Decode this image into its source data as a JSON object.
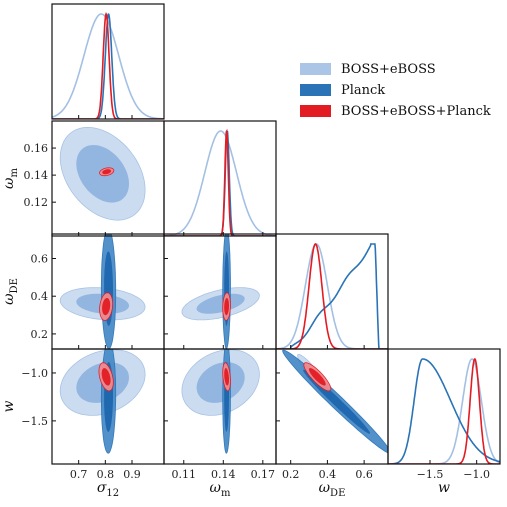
{
  "chart_data": {
    "type": "triangle-corner-plot",
    "legend": {
      "placement": "top-right",
      "entries": [
        {
          "label": "BOSS+eBOSS",
          "color": "#aac5e6"
        },
        {
          "label": "Planck",
          "color": "#2a73b6"
        },
        {
          "label": "BOSS+eBOSS+Planck",
          "color": "#e31b23"
        }
      ]
    },
    "parameters": [
      {
        "label": "σ",
        "sub": "12",
        "range": [
          0.6,
          1.02
        ],
        "ticks": [
          0.7,
          0.8,
          0.9
        ],
        "tick_labels": [
          "0.7",
          "0.8",
          "0.9"
        ]
      },
      {
        "label": "ω",
        "sub": "m",
        "range": [
          0.095,
          0.18
        ],
        "ticks": [
          0.11,
          0.14,
          0.17
        ],
        "tick_labels": [
          "0.11",
          "0.14",
          "0.17"
        ]
      },
      {
        "label": "ω",
        "sub": "DE",
        "range": [
          0.12,
          0.73
        ],
        "ticks": [
          0.2,
          0.4,
          0.6
        ],
        "tick_labels": [
          "0.2",
          "0.4",
          "0.6"
        ]
      },
      {
        "label": "w",
        "sub": "",
        "range": [
          -1.95,
          -0.75
        ],
        "ticks": [
          -1.5,
          -1.0
        ],
        "tick_labels": [
          "−1.5",
          "−1.0"
        ]
      }
    ],
    "y_tick_labels": {
      "1": {
        "ticks": [
          0.12,
          0.14,
          0.16
        ],
        "labels": [
          "0.12",
          "0.14",
          "0.16"
        ]
      },
      "2": {
        "ticks": [
          0.2,
          0.4,
          0.6
        ],
        "labels": [
          "0.2",
          "0.4",
          "0.6"
        ]
      },
      "3": {
        "ticks": [
          -1.5,
          -1.0
        ],
        "labels": [
          "−1.5",
          "−1.0"
        ]
      }
    },
    "marginals": [
      {
        "param": 0,
        "series": [
          {
            "name": "BOSS+eBOSS",
            "mean": 0.785,
            "sd": 0.065
          },
          {
            "name": "Planck",
            "mean": 0.812,
            "sd": 0.012
          },
          {
            "name": "BOSS+eBOSS+Planck",
            "mean": 0.803,
            "sd": 0.011
          }
        ]
      },
      {
        "param": 1,
        "series": [
          {
            "name": "BOSS+eBOSS",
            "mean": 0.138,
            "sd": 0.012
          },
          {
            "name": "Planck",
            "mean": 0.143,
            "sd": 0.0015
          },
          {
            "name": "BOSS+eBOSS+Planck",
            "mean": 0.1425,
            "sd": 0.0013
          }
        ]
      },
      {
        "param": 2,
        "series": [
          {
            "name": "BOSS+eBOSS",
            "mean": 0.34,
            "sd": 0.06
          },
          {
            "name": "Planck",
            "shape": "rising",
            "from": 0.2,
            "to": 0.66,
            "plateau": 0.635
          },
          {
            "name": "BOSS+eBOSS+Planck",
            "mean": 0.335,
            "sd": 0.035
          }
        ]
      },
      {
        "param": 3,
        "series": [
          {
            "name": "BOSS+eBOSS",
            "mean": -1.05,
            "sd": 0.1
          },
          {
            "name": "Planck",
            "shape": "skewed",
            "peak": -1.58,
            "left_sd": 0.09,
            "right_sd": 0.3
          },
          {
            "name": "BOSS+eBOSS+Planck",
            "mean": -1.02,
            "sd": 0.05
          }
        ]
      }
    ],
    "contours": [
      {
        "px": 0,
        "py": 1,
        "ellipses": [
          {
            "series": "BOSS+eBOSS",
            "cx": 0.79,
            "cy": 0.141,
            "sx": 0.065,
            "sy": 0.014,
            "rho": -0.35
          },
          {
            "series": "BOSS+eBOSS+Planck",
            "cx": 0.805,
            "cy": 0.1425,
            "sx": 0.011,
            "sy": 0.0012,
            "rho": 0.3
          }
        ]
      },
      {
        "px": 0,
        "py": 2,
        "ellipses": [
          {
            "series": "BOSS+eBOSS",
            "cx": 0.79,
            "cy": 0.36,
            "sx": 0.065,
            "sy": 0.035,
            "rho": -0.2
          },
          {
            "series": "Planck",
            "cx": 0.812,
            "cy": 0.44,
            "sx": 0.011,
            "sy": 0.13,
            "rho": -0.05
          },
          {
            "series": "BOSS+eBOSS+Planck",
            "cx": 0.803,
            "cy": 0.345,
            "sx": 0.01,
            "sy": 0.03,
            "rho": 0.2
          }
        ]
      },
      {
        "px": 1,
        "py": 2,
        "ellipses": [
          {
            "series": "BOSS+eBOSS",
            "cx": 0.138,
            "cy": 0.36,
            "sx": 0.012,
            "sy": 0.035,
            "rho": 0.5
          },
          {
            "series": "Planck",
            "cx": 0.1425,
            "cy": 0.44,
            "sx": 0.0012,
            "sy": 0.13,
            "rho": 0.05
          },
          {
            "series": "BOSS+eBOSS+Planck",
            "cx": 0.1425,
            "cy": 0.345,
            "sx": 0.0012,
            "sy": 0.03,
            "rho": 0.1
          }
        ]
      },
      {
        "px": 0,
        "py": 3,
        "ellipses": [
          {
            "series": "BOSS+eBOSS",
            "cx": 0.79,
            "cy": -1.1,
            "sx": 0.065,
            "sy": 0.14,
            "rho": 0.25
          },
          {
            "series": "Planck",
            "cx": 0.812,
            "cy": -1.25,
            "sx": 0.011,
            "sy": 0.24,
            "rho": 0.05
          },
          {
            "series": "BOSS+eBOSS+Planck",
            "cx": 0.803,
            "cy": -1.04,
            "sx": 0.011,
            "sy": 0.06,
            "rho": -0.4
          }
        ]
      },
      {
        "px": 1,
        "py": 3,
        "ellipses": [
          {
            "series": "BOSS+eBOSS",
            "cx": 0.138,
            "cy": -1.1,
            "sx": 0.012,
            "sy": 0.14,
            "rho": 0.25
          },
          {
            "series": "Planck",
            "cx": 0.1425,
            "cy": -1.25,
            "sx": 0.0012,
            "sy": 0.24,
            "rho": 0.05
          },
          {
            "series": "BOSS+eBOSS+Planck",
            "cx": 0.1425,
            "cy": -1.04,
            "sx": 0.0012,
            "sy": 0.06,
            "rho": -0.3
          }
        ]
      },
      {
        "px": 2,
        "py": 3,
        "ellipses": [
          {
            "series": "BOSS+eBOSS",
            "cx": 0.36,
            "cy": -1.1,
            "sx": 0.05,
            "sy": 0.12,
            "rho": -0.95
          },
          {
            "series": "Planck",
            "cx": 0.45,
            "cy": -1.3,
            "sx": 0.12,
            "sy": 0.22,
            "rho": -0.985
          },
          {
            "series": "BOSS+eBOSS+Planck",
            "cx": 0.345,
            "cy": -1.04,
            "sx": 0.03,
            "sy": 0.06,
            "rho": -0.85
          }
        ]
      }
    ]
  }
}
